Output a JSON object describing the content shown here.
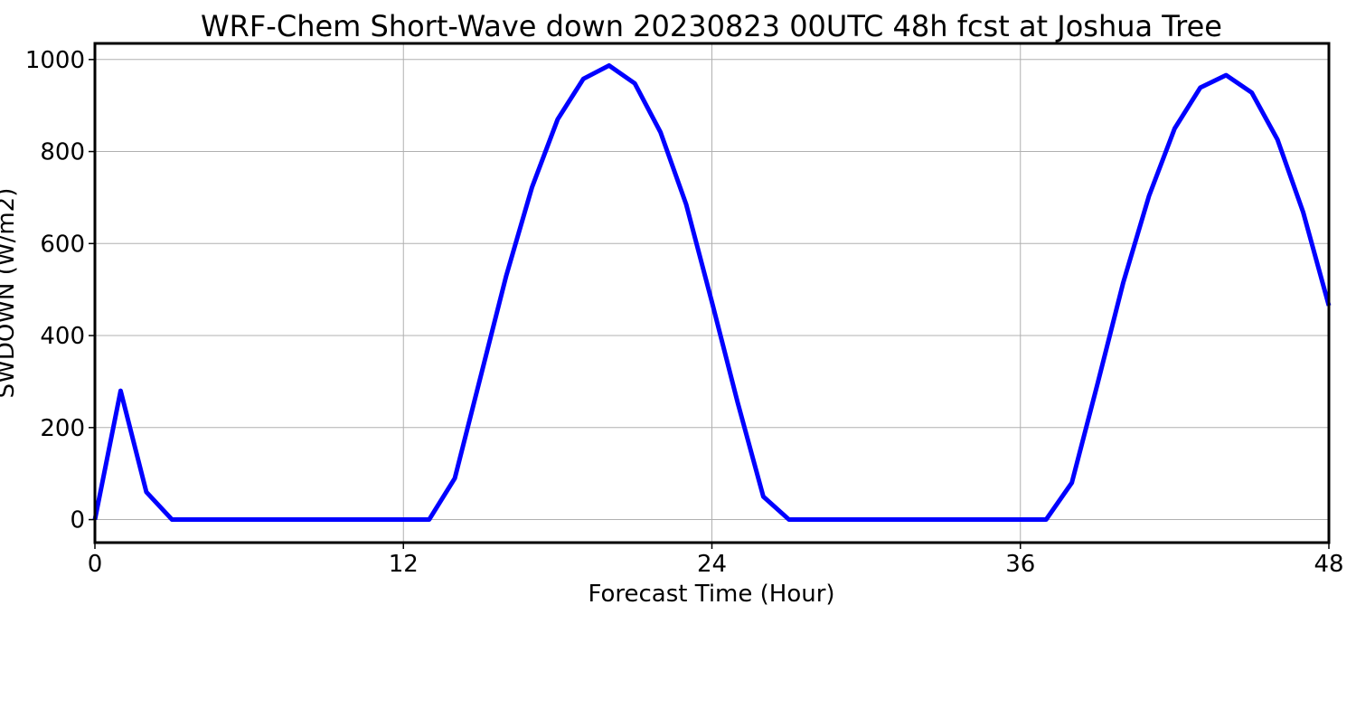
{
  "chart_data": {
    "type": "line",
    "title": "WRF-Chem Short-Wave down  20230823 00UTC 48h fcst at Joshua Tree",
    "xlabel": "Forecast Time (Hour)",
    "ylabel": "SWDOWN  (W/m2)",
    "xlim": [
      0,
      48
    ],
    "ylim": [
      -50,
      1035
    ],
    "x_ticks": [
      0,
      12,
      24,
      36,
      48
    ],
    "x_tick_labels": [
      "0",
      "12",
      "24",
      "36",
      "48"
    ],
    "y_ticks": [
      0,
      200,
      400,
      600,
      800,
      1000
    ],
    "y_tick_labels": [
      "0",
      "200",
      "400",
      "600",
      "800",
      "1000"
    ],
    "grid": true,
    "legend": "none",
    "series": [
      {
        "color": "#0000ff",
        "x": [
          0,
          1,
          2,
          3,
          4,
          5,
          6,
          7,
          8,
          9,
          10,
          11,
          12,
          13,
          14,
          15,
          16,
          17,
          18,
          19,
          20,
          21,
          22,
          23,
          24,
          25,
          26,
          27,
          28,
          29,
          30,
          31,
          32,
          33,
          34,
          35,
          36,
          37,
          38,
          39,
          40,
          41,
          42,
          43,
          44,
          45,
          46,
          47,
          48
        ],
        "y": [
          0,
          280,
          60,
          0,
          0,
          0,
          0,
          0,
          0,
          0,
          0,
          0,
          0,
          0,
          90,
          310,
          530,
          722,
          870,
          958,
          987,
          948,
          842,
          685,
          473,
          255,
          50,
          0,
          0,
          0,
          0,
          0,
          0,
          0,
          0,
          0,
          0,
          0,
          80,
          295,
          515,
          703,
          850,
          939,
          966,
          928,
          826,
          668,
          465
        ]
      }
    ]
  }
}
